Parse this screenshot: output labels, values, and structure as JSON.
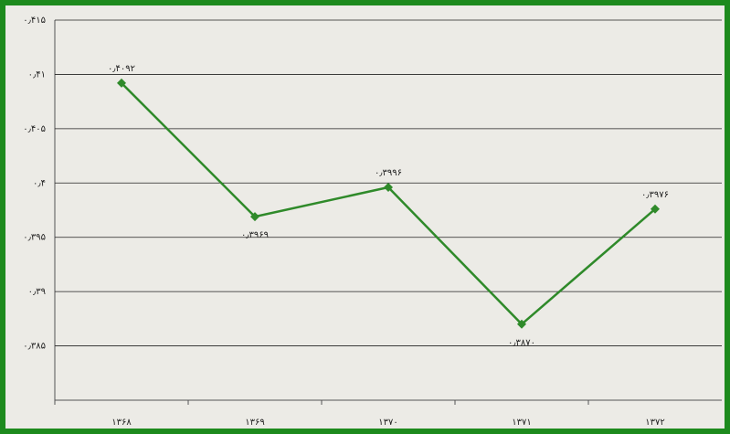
{
  "chart_data": {
    "type": "line",
    "categories": [
      "۱۳۶۸",
      "۱۳۶۹",
      "۱۳۷۰",
      "۱۳۷۱",
      "۱۳۷۲"
    ],
    "values": [
      0.4092,
      0.3969,
      0.3996,
      0.387,
      0.3976
    ],
    "value_labels": [
      "۰٫۴۰۹۲",
      "۰٫۳۹۶۹",
      "۰٫۳۹۹۶",
      "۰٫۳۸۷۰",
      "۰٫۳۹۷۶"
    ],
    "color": "#2f8a2a",
    "ylim": [
      0.38,
      0.415
    ],
    "yticks": [
      {
        "value": 0.385,
        "label": "۰٫۳۸۵"
      },
      {
        "value": 0.39,
        "label": "۰٫۳۹"
      },
      {
        "value": 0.395,
        "label": "۰٫۳۹۵"
      },
      {
        "value": 0.4,
        "label": "۰٫۴"
      },
      {
        "value": 0.405,
        "label": "۰٫۴۰۵"
      },
      {
        "value": 0.41,
        "label": "۰٫۴۱"
      },
      {
        "value": 0.415,
        "label": "۰٫۴۱۵"
      }
    ],
    "grid": true
  }
}
